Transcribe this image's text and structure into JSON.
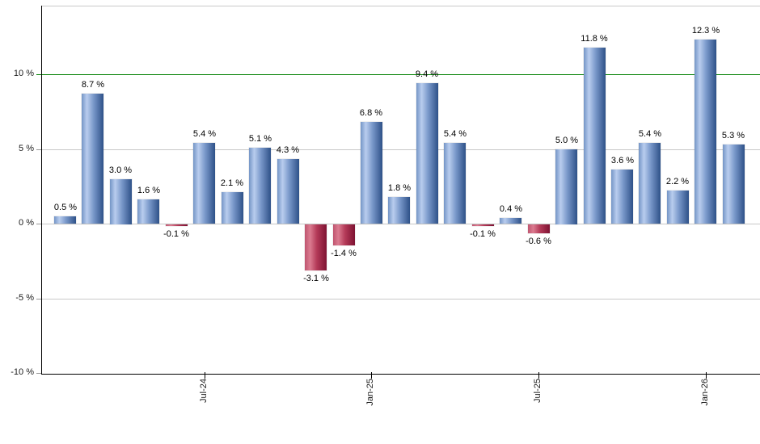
{
  "chart_data": {
    "type": "bar",
    "title": "",
    "xlabel": "",
    "ylabel": "",
    "unit": "%",
    "values": [
      0.5,
      8.7,
      3.0,
      1.6,
      -0.1,
      5.4,
      2.1,
      5.1,
      4.3,
      -3.1,
      -1.4,
      6.8,
      1.8,
      9.4,
      5.4,
      -0.1,
      0.4,
      -0.6,
      5.0,
      11.8,
      3.6,
      5.4,
      2.2,
      12.3,
      5.3
    ],
    "bar_labels": [
      "0.5 %",
      "8.7 %",
      "3.0 %",
      "1.6 %",
      "-0.1 %",
      "5.4 %",
      "2.1 %",
      "5.1 %",
      "4.3 %",
      "-3.1 %",
      "-1.4 %",
      "6.8 %",
      "1.8 %",
      "9.4 %",
      "5.4 %",
      "-0.1 %",
      "0.4 %",
      "-0.6 %",
      "5.0 %",
      "11.8 %",
      "3.6 %",
      "5.4 %",
      "2.2 %",
      "12.3 %",
      "5.3 %"
    ],
    "x_tick_labels": [
      {
        "label": "Jul-24",
        "bar_index": 5
      },
      {
        "label": "Jan-25",
        "bar_index": 11
      },
      {
        "label": "Jul-25",
        "bar_index": 17
      },
      {
        "label": "Jan-26",
        "bar_index": 23
      }
    ],
    "y_tick_labels": [
      {
        "label": "10 %",
        "value": 10
      },
      {
        "label": "5 %",
        "value": 5
      },
      {
        "label": "0 %",
        "value": 0
      },
      {
        "label": "-5 %",
        "value": -5
      },
      {
        "label": "-10 %",
        "value": -10
      }
    ],
    "ylim": [
      -10,
      14.65
    ],
    "grid": true,
    "legend_position": "none",
    "reference_line": {
      "value": 10
    },
    "colors": {
      "positive_bar_gradient": [
        "#7495c6",
        "#b9cdee",
        "#7897c9",
        "#2e5188"
      ],
      "negative_bar_gradient": [
        "#c05570",
        "#db7b90",
        "#b43a58",
        "#7e1232"
      ],
      "reference_line": "#008000",
      "gridline": "#c8c8c8",
      "plot_top_border": "#c9c9c9",
      "axis": "#000000",
      "tick_stub": "#999999",
      "label_text": "#1a1a1a",
      "background": "#ffffff"
    }
  }
}
